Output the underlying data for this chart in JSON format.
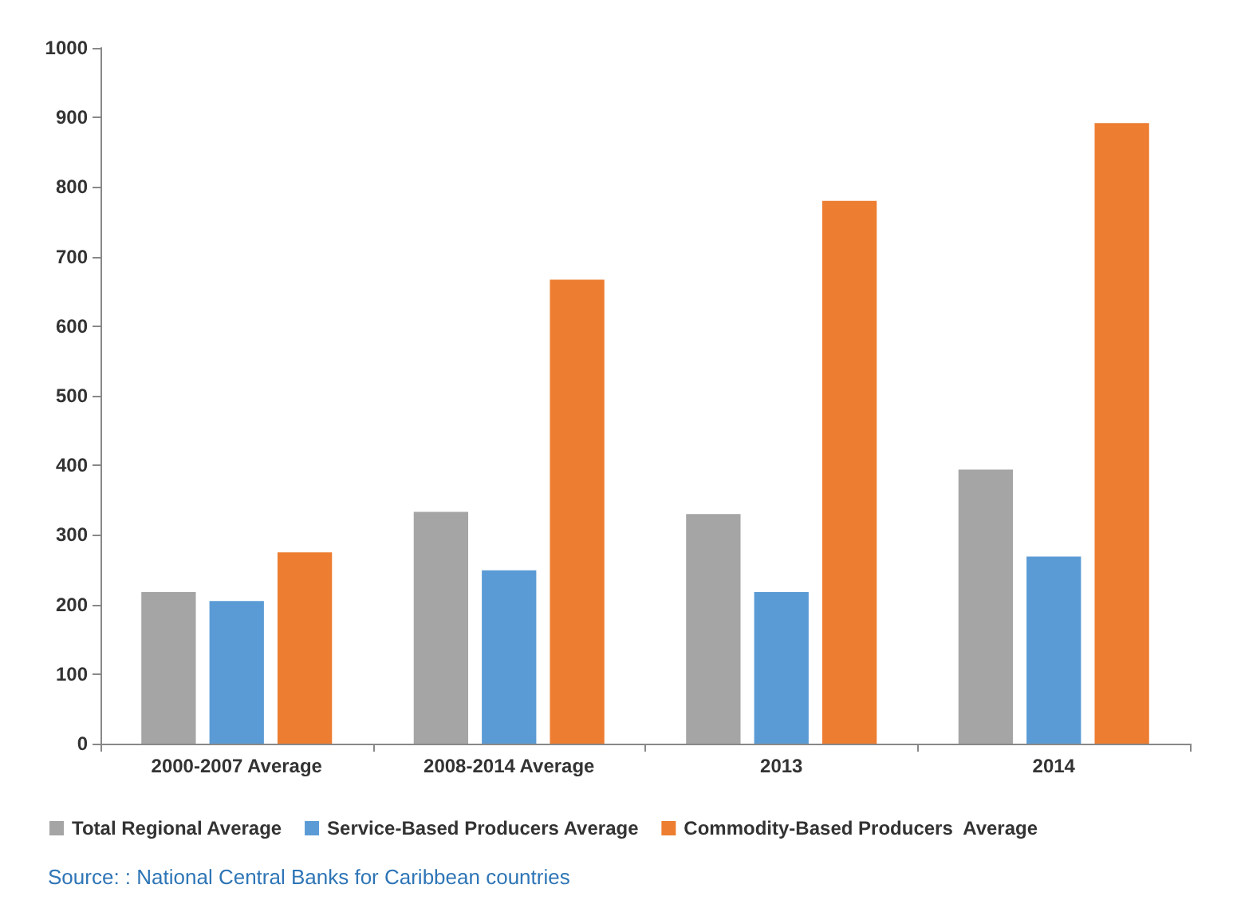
{
  "chart_data": {
    "type": "bar",
    "categories": [
      "2000-2007 Average",
      "2008-2014 Average",
      "2013",
      "2014"
    ],
    "series": [
      {
        "name": "Total Regional Average",
        "color": "#a5a5a5",
        "values": [
          218,
          333,
          330,
          394
        ]
      },
      {
        "name": "Service-Based Producers Average",
        "color": "#5b9bd5",
        "values": [
          205,
          249,
          218,
          269
        ]
      },
      {
        "name": "Commodity-Based Producers  Average",
        "color": "#ed7d31",
        "values": [
          275,
          667,
          780,
          892
        ]
      }
    ],
    "ylim": [
      0,
      1000
    ],
    "yticks": [
      0,
      100,
      200,
      300,
      400,
      500,
      600,
      700,
      800,
      900,
      1000
    ],
    "grid": false,
    "legend": "bottom left",
    "annotations": [
      "Source: : National Central Banks for Caribbean countries"
    ]
  }
}
